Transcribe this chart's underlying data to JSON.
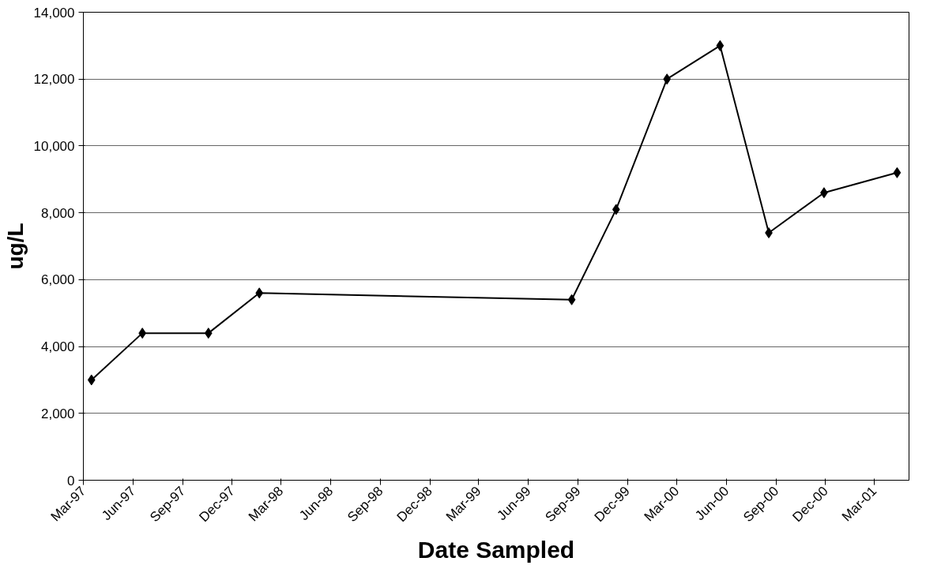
{
  "chart_data": {
    "type": "line",
    "xlabel": "Date Sampled",
    "ylabel": "ug/L",
    "x": [
      "1997-03-16",
      "1997-06-18",
      "1997-10-18",
      "1998-01-20",
      "1999-08-20",
      "1999-11-10",
      "2000-02-12",
      "2000-05-20",
      "2000-08-18",
      "2000-11-28",
      "2001-04-12"
    ],
    "series": [
      {
        "color": "#000000",
        "values": [
          3000,
          4400,
          4400,
          5600,
          5400,
          8100,
          12000,
          13000,
          7400,
          8600,
          9200
        ]
      }
    ],
    "xlim": [
      "1997-03-01",
      "2001-05-04"
    ],
    "xticks": [
      {
        "value": "1997-03-01",
        "label": "Mar-97"
      },
      {
        "value": "1997-06-01",
        "label": "Jun-97"
      },
      {
        "value": "1997-09-01",
        "label": "Sep-97"
      },
      {
        "value": "1997-12-01",
        "label": "Dec-97"
      },
      {
        "value": "1998-03-01",
        "label": "Mar-98"
      },
      {
        "value": "1998-06-01",
        "label": "Jun-98"
      },
      {
        "value": "1998-09-01",
        "label": "Sep-98"
      },
      {
        "value": "1998-12-01",
        "label": "Dec-98"
      },
      {
        "value": "1999-03-01",
        "label": "Mar-99"
      },
      {
        "value": "1999-06-01",
        "label": "Jun-99"
      },
      {
        "value": "1999-09-01",
        "label": "Sep-99"
      },
      {
        "value": "1999-12-01",
        "label": "Dec-99"
      },
      {
        "value": "2000-03-01",
        "label": "Mar-00"
      },
      {
        "value": "2000-06-01",
        "label": "Jun-00"
      },
      {
        "value": "2000-09-01",
        "label": "Sep-00"
      },
      {
        "value": "2000-12-01",
        "label": "Dec-00"
      },
      {
        "value": "2001-03-01",
        "label": "Mar-01"
      }
    ],
    "ylim": [
      0,
      14000
    ],
    "yticks": [
      0,
      {
        "value": 2000,
        "label": "2,000"
      },
      {
        "value": 4000,
        "label": "4,000"
      },
      {
        "value": 6000,
        "label": "6,000"
      },
      {
        "value": 8000,
        "label": "8,000"
      },
      {
        "value": 10000,
        "label": "10,000"
      },
      {
        "value": 12000,
        "label": "12,000"
      },
      {
        "value": 14000,
        "label": "14,000"
      }
    ],
    "grid": "y",
    "marker": "diamond",
    "line_style": "solid"
  }
}
